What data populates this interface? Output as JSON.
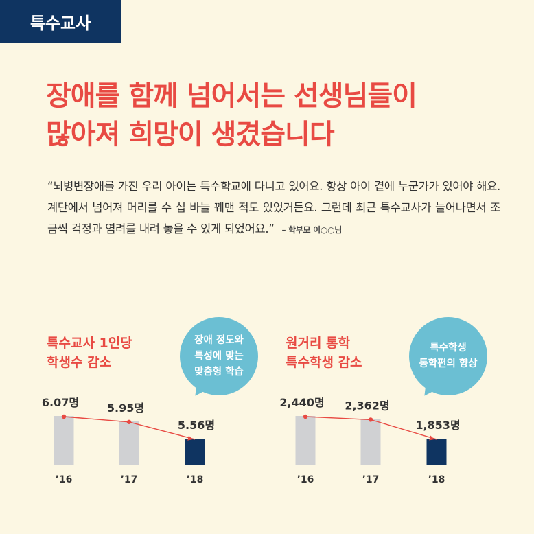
{
  "tag": "특수교사",
  "headline": [
    "장애를 함께 넘어서는 선생님들이",
    "많아져  희망이 생겼습니다"
  ],
  "quote": {
    "text": "“뇌병변장애를 가진 우리 아이는 특수학교에 다니고 있어요. 항상 아이 곁에 누군가가 있어야 해요. 계단에서 넘어져 머리를 수 십 바늘 꿰맨 적도 있었거든요. 그런데 최근 특수교사가 늘어나면서 조금씩 걱정과 염려를 내려 놓을 수 있게 되었어요.”",
    "attribution": "– 학부모 이○○님"
  },
  "colors": {
    "accent": "#e84a43",
    "navy": "#0f3461",
    "bubble": "#6bbfd3",
    "bar_gray": "#d0d1d3",
    "background": "#fcf7e3"
  },
  "charts": [
    {
      "title": [
        "특수교사 1인당",
        "학생수 감소"
      ],
      "bubble": [
        "장애 정도와",
        "특성에 맞는",
        "맞춤형 학습"
      ]
    },
    {
      "title": [
        "원거리 통학",
        "특수학생 감소"
      ],
      "bubble": [
        "특수학생",
        "통학편의 향상"
      ]
    }
  ],
  "chart_data": [
    {
      "type": "bar",
      "title": "특수교사 1인당 학생수 감소",
      "categories": [
        "’16",
        "’17",
        "’18"
      ],
      "values": [
        6.07,
        5.95,
        5.56
      ],
      "labels": [
        "6.07명",
        "5.95명",
        "5.56명"
      ],
      "unit": "명",
      "highlight_index": 2,
      "trend_line": true
    },
    {
      "type": "bar",
      "title": "원거리 통학 특수학생 감소",
      "categories": [
        "’16",
        "’17",
        "’18"
      ],
      "values": [
        2440,
        2362,
        1853
      ],
      "labels": [
        "2,440명",
        "2,362명",
        "1,853명"
      ],
      "unit": "명",
      "highlight_index": 2,
      "trend_line": true
    }
  ]
}
